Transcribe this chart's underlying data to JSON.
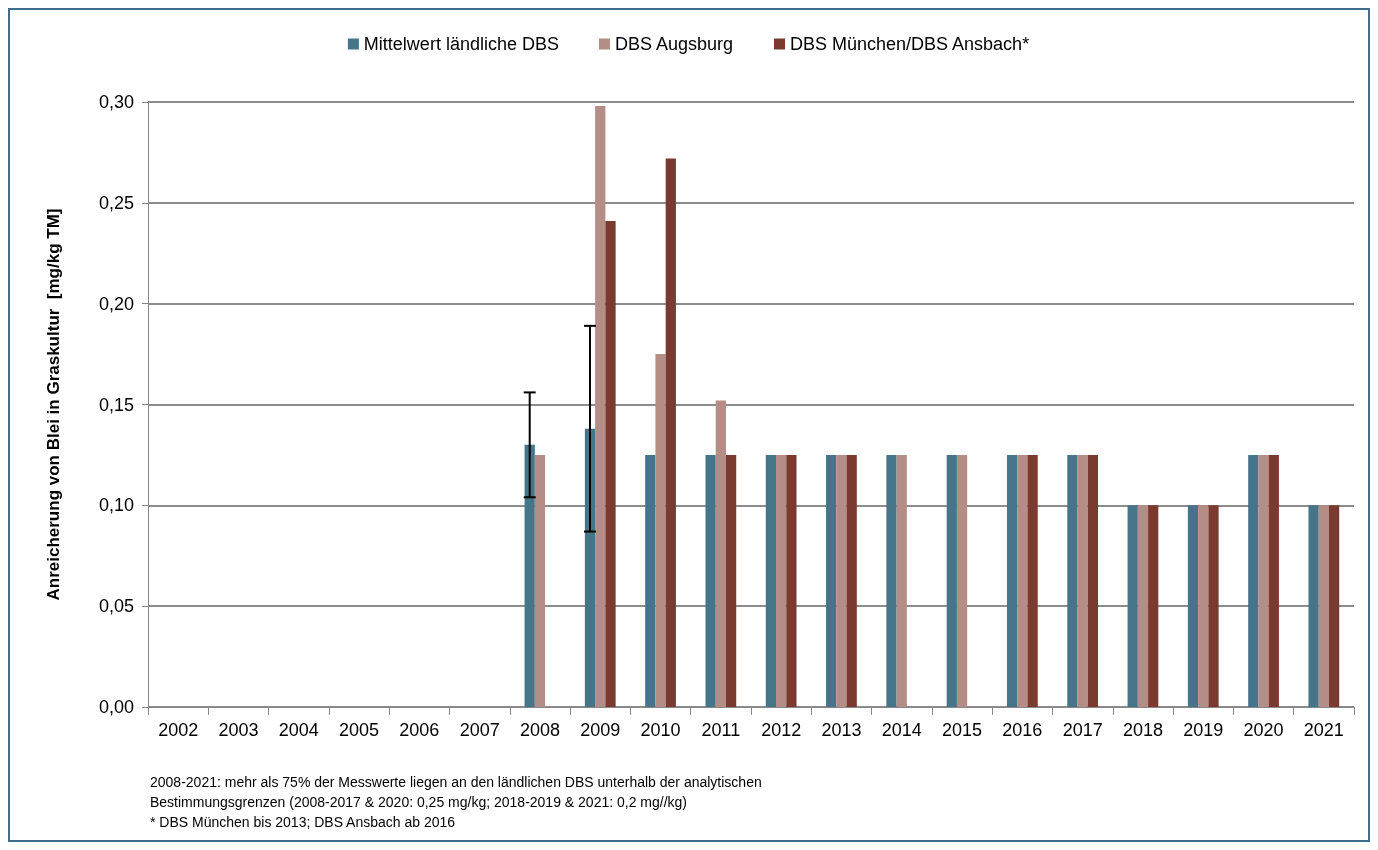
{
  "chart_data": {
    "type": "bar",
    "ylabel": "Anreicherung von Blei in Graskultur  [mg/kg TM]",
    "categories": [
      "2002",
      "2003",
      "2004",
      "2005",
      "2006",
      "2007",
      "2008",
      "2009",
      "2010",
      "2011",
      "2012",
      "2013",
      "2014",
      "2015",
      "2016",
      "2017",
      "2018",
      "2019",
      "2020",
      "2021"
    ],
    "series": [
      {
        "name": "Mittelwert ländliche DBS",
        "color": "#46758a",
        "values": [
          null,
          null,
          null,
          null,
          null,
          null,
          0.13,
          0.138,
          0.125,
          0.125,
          0.125,
          0.125,
          0.125,
          0.125,
          0.125,
          0.125,
          0.1,
          0.1,
          0.125,
          0.1
        ],
        "errors": [
          null,
          null,
          null,
          null,
          null,
          null,
          [
            0.104,
            0.156
          ],
          [
            0.087,
            0.189
          ],
          null,
          null,
          null,
          null,
          null,
          null,
          null,
          null,
          null,
          null,
          null,
          null
        ]
      },
      {
        "name": "DBS Augsburg",
        "color": "#b48d86",
        "values": [
          null,
          null,
          null,
          null,
          null,
          null,
          0.125,
          0.298,
          0.175,
          0.152,
          0.125,
          0.125,
          0.125,
          0.125,
          0.125,
          0.125,
          0.1,
          0.1,
          0.125,
          0.1
        ]
      },
      {
        "name": "DBS München/DBS Ansbach*",
        "color": "#7b3a30",
        "values": [
          null,
          null,
          null,
          null,
          null,
          null,
          null,
          0.241,
          0.272,
          0.125,
          0.125,
          0.125,
          null,
          null,
          0.125,
          0.125,
          0.1,
          0.1,
          0.125,
          0.1
        ]
      }
    ],
    "ylim": [
      0,
      0.3
    ],
    "yticks": [
      {
        "value": 0,
        "label": "0,00"
      },
      {
        "value": 0.05,
        "label": "0,05"
      },
      {
        "value": 0.1,
        "label": "0,10"
      },
      {
        "value": 0.15,
        "label": "0,15"
      },
      {
        "value": 0.2,
        "label": "0,20"
      },
      {
        "value": 0.25,
        "label": "0,25"
      },
      {
        "value": 0.3,
        "label": "0,30"
      }
    ],
    "grid": "y",
    "legend": "top",
    "annotations": [
      "2008-2021: mehr als 75% der Messwerte liegen an den ländlichen DBS unterhalb der analytischen Bestimmungsgrenzen (2008-2017 & 2020: 0,25 mg/kg; 2018-2019 & 2021: 0,2 mg//kg)",
      "* DBS München bis 2013; DBS Ansbach ab 2016"
    ]
  }
}
